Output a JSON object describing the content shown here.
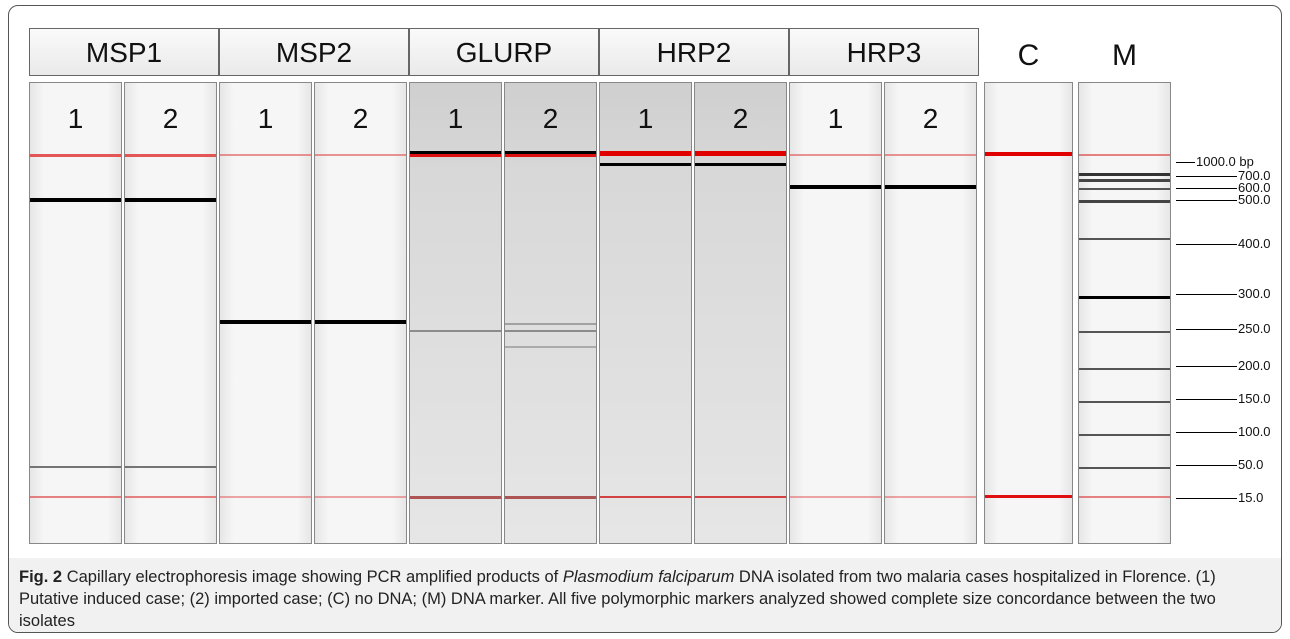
{
  "figure": {
    "groups": [
      {
        "name": "MSP1",
        "lanes": [
          "1",
          "2"
        ]
      },
      {
        "name": "MSP2",
        "lanes": [
          "1",
          "2"
        ]
      },
      {
        "name": "GLURP",
        "lanes": [
          "1",
          "2"
        ]
      },
      {
        "name": "HRP2",
        "lanes": [
          "1",
          "2"
        ]
      },
      {
        "name": "HRP3",
        "lanes": [
          "1",
          "2"
        ]
      }
    ],
    "control": "C",
    "marker": "M",
    "ladder": [
      "1000.0 bp",
      "700.0",
      "600.0",
      "500.0",
      "400.0",
      "300.0",
      "250.0",
      "200.0",
      "150.0",
      "100.0",
      "50.0",
      "15.0"
    ],
    "caption": {
      "label": "Fig. 2",
      "text_before": "Capillary electrophoresis image showing PCR amplified products of",
      "species": "Plasmodium falciparum",
      "text_after": "DNA isolated from two malaria cases hospitalized in Florence. (1) Putative induced case; (2) imported case; (C) no DNA; (M) DNA marker. All five polymorphic markers analyzed showed complete size concordance between the two isolates"
    }
  }
}
